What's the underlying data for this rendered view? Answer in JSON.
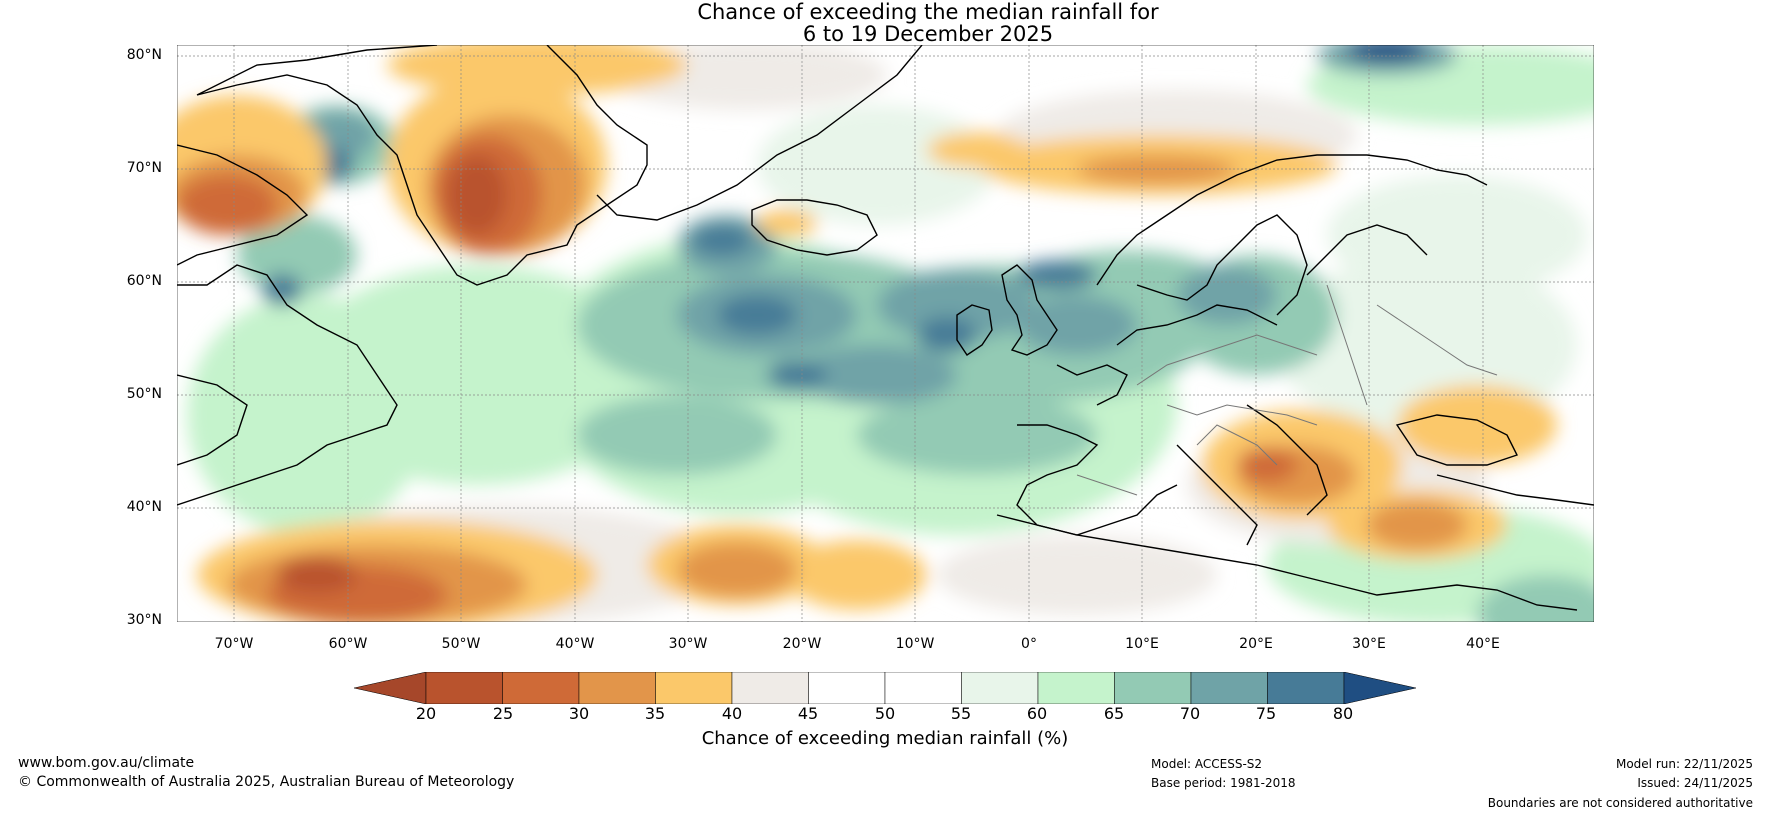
{
  "title": {
    "line1": "Chance of exceeding the median rainfall for",
    "line2": "6 to 19 December 2025"
  },
  "map": {
    "lat_labels": [
      "80°N",
      "70°N",
      "60°N",
      "50°N",
      "40°N",
      "30°N"
    ],
    "lon_labels": [
      "70°W",
      "60°W",
      "50°W",
      "40°W",
      "30°W",
      "20°W",
      "10°W",
      "0°",
      "10°E",
      "20°E",
      "30°E",
      "40°E"
    ],
    "lon_range": [
      -75,
      50
    ],
    "lat_range": [
      30,
      81
    ]
  },
  "colorbar": {
    "label": "Chance of exceeding median rainfall (%)",
    "ticks": [
      "20",
      "25",
      "30",
      "35",
      "40",
      "45",
      "50",
      "55",
      "60",
      "65",
      "70",
      "75",
      "80"
    ],
    "colors": [
      "#a6472a",
      "#b9532d",
      "#cf6a37",
      "#e2954a",
      "#fbc86a",
      "#efebe7",
      "#ffffff",
      "#ffffff",
      "#e8f5ea",
      "#c5f3cc",
      "#93cab4",
      "#6fa3a7",
      "#477b97",
      "#1f4e82"
    ]
  },
  "footer": {
    "website": "www.bom.gov.au/climate",
    "copyright": "© Commonwealth of Australia 2025, Australian Bureau of Meteorology",
    "model": "Model: ACCESS-S2",
    "base_period": "Base period: 1981-2018",
    "model_run": "Model run: 22/11/2025",
    "issued": "Issued: 24/11/2025",
    "disclaimer": "Boundaries are not considered authoritative"
  }
}
